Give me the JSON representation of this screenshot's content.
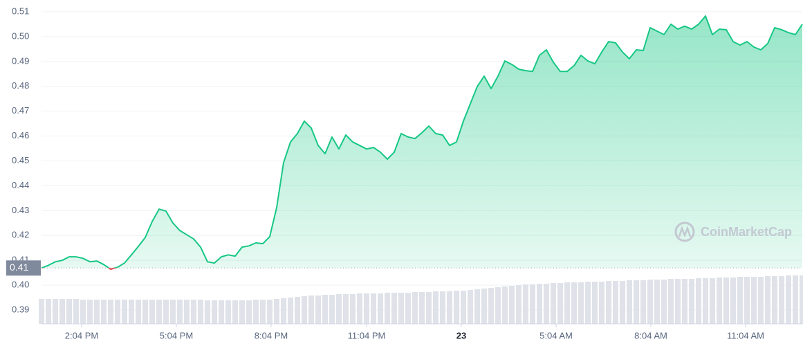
{
  "chart_data": {
    "type": "line",
    "series": [
      {
        "color": "#16c784",
        "values": [
          0.4069,
          0.408,
          0.4094,
          0.41,
          0.4114,
          0.4114,
          0.4108,
          0.4094,
          0.4097,
          0.4083,
          0.4064,
          0.4072,
          0.4089,
          0.4122,
          0.4156,
          0.4192,
          0.4256,
          0.4306,
          0.4298,
          0.425,
          0.422,
          0.4203,
          0.4186,
          0.4153,
          0.4094,
          0.4089,
          0.4114,
          0.4122,
          0.4117,
          0.4153,
          0.4158,
          0.417,
          0.4167,
          0.4195,
          0.4312,
          0.4493,
          0.4576,
          0.461,
          0.466,
          0.4632,
          0.4562,
          0.4529,
          0.4596,
          0.4548,
          0.4604,
          0.4576,
          0.4562,
          0.4548,
          0.4554,
          0.4535,
          0.4507,
          0.4535,
          0.461,
          0.4596,
          0.459,
          0.4613,
          0.464,
          0.461,
          0.4604,
          0.4562,
          0.4576,
          0.466,
          0.473,
          0.4799,
          0.4841,
          0.4791,
          0.4841,
          0.4902,
          0.4888,
          0.4869,
          0.4863,
          0.486,
          0.4925,
          0.4947,
          0.4897,
          0.486,
          0.486,
          0.4883,
          0.4925,
          0.4902,
          0.4891,
          0.4938,
          0.498,
          0.4975,
          0.4938,
          0.4911,
          0.4947,
          0.4944,
          0.5036,
          0.5022,
          0.5008,
          0.505,
          0.503,
          0.5042,
          0.503,
          0.505,
          0.5083,
          0.5008,
          0.503,
          0.5028,
          0.498,
          0.4966,
          0.498,
          0.4958,
          0.4947,
          0.4972,
          0.5036,
          0.5028,
          0.5016,
          0.5008,
          0.505
        ]
      }
    ],
    "below_color": "#ea3943",
    "reference_line": {
      "value": 0.4069,
      "label": "0.41"
    },
    "volume": {
      "color": "#dfe2e8",
      "values": [
        36,
        36,
        36,
        36,
        36,
        36,
        35,
        35,
        35,
        35,
        35,
        35,
        35,
        35,
        35,
        35,
        35,
        35,
        35,
        35,
        35,
        35,
        35,
        35,
        34,
        34,
        34,
        34,
        34,
        34,
        34,
        35,
        35,
        35,
        36,
        37,
        38,
        39,
        40,
        41,
        41,
        42,
        42,
        43,
        43,
        43,
        44,
        44,
        44,
        44,
        45,
        45,
        45,
        45,
        46,
        46,
        46,
        47,
        47,
        47,
        48,
        48,
        49,
        50,
        51,
        52,
        53,
        54,
        55,
        56,
        57,
        57,
        58,
        58,
        59,
        59,
        60,
        60,
        60,
        61,
        61,
        61,
        62,
        62,
        62,
        63,
        63,
        63,
        64,
        64,
        64,
        65,
        65,
        65,
        65,
        66,
        66,
        66,
        67,
        67,
        67,
        68,
        68,
        68,
        68,
        69,
        69,
        69,
        70,
        70,
        70
      ]
    },
    "y2lim": [
      0,
      100
    ],
    "xlim": [
      0,
      110
    ],
    "xticks": [
      {
        "value": 5.8,
        "label": "2:04 PM"
      },
      {
        "value": 19.5,
        "label": "5:04 PM"
      },
      {
        "value": 33.2,
        "label": "8:04 PM"
      },
      {
        "value": 47,
        "label": "11:04 PM"
      },
      {
        "value": 60.7,
        "label": "23"
      },
      {
        "value": 74.4,
        "label": "5:04 AM"
      },
      {
        "value": 88.1,
        "label": "8:04 AM"
      },
      {
        "value": 101.8,
        "label": "11:04 AM"
      }
    ],
    "ylim": [
      0.39,
      0.51
    ],
    "yticks": [
      0.39,
      {
        "value": 0.4,
        "label": "0.40"
      },
      0.41,
      0.42,
      0.43,
      0.44,
      0.45,
      0.46,
      0.47,
      0.48,
      0.49,
      {
        "value": 0.5,
        "label": "0.50"
      },
      0.51
    ],
    "grid": true,
    "watermark": "CoinMarketCap"
  }
}
